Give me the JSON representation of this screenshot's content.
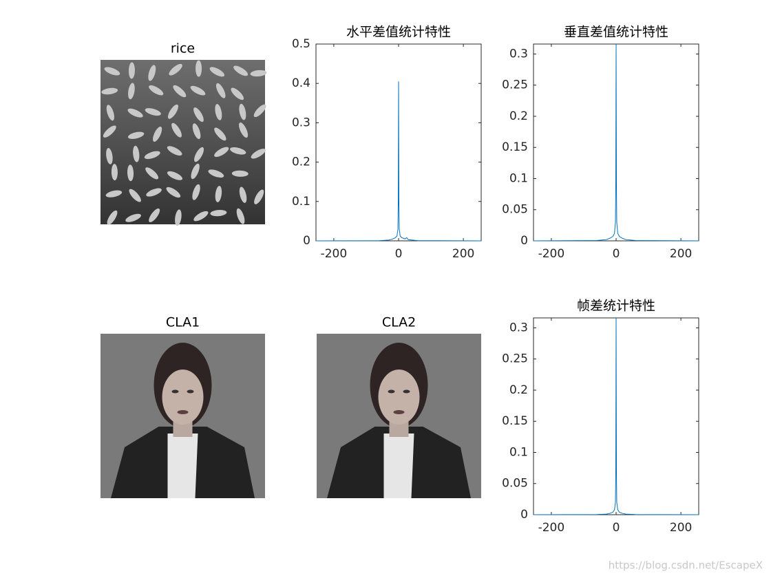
{
  "chart_data": [
    {
      "type": "image",
      "title": "rice"
    },
    {
      "type": "line",
      "title": "水平差值统计特性",
      "color": "#0072bd",
      "x": [
        -255,
        -60,
        -30,
        -20,
        -10,
        -5,
        -2,
        -1,
        0,
        1,
        2,
        5,
        10,
        20,
        25,
        30,
        60,
        255
      ],
      "values": [
        0,
        0.0005,
        0.002,
        0.004,
        0.008,
        0.012,
        0.03,
        0.1,
        0.405,
        0.1,
        0.03,
        0.012,
        0.008,
        0.005,
        0.008,
        0.003,
        0.0005,
        0
      ],
      "xlim": [
        -255,
        255
      ],
      "xticks": [
        -200,
        0,
        200
      ],
      "ylim": [
        0,
        0.5
      ],
      "yticks": [
        0,
        0.1,
        0.2,
        0.3,
        0.4,
        0.5
      ],
      "grid": false
    },
    {
      "type": "line",
      "title": "垂直差值统计特性",
      "color": "#0072bd",
      "x": [
        -255,
        -60,
        -30,
        -20,
        -10,
        -5,
        -2,
        -1,
        0,
        1,
        2,
        5,
        10,
        20,
        30,
        60,
        255
      ],
      "values": [
        0,
        0.0005,
        0.002,
        0.004,
        0.007,
        0.012,
        0.03,
        0.09,
        0.316,
        0.09,
        0.03,
        0.012,
        0.007,
        0.004,
        0.002,
        0.0005,
        0
      ],
      "xlim": [
        -255,
        255
      ],
      "xticks": [
        -200,
        0,
        200
      ],
      "ylim": [
        0,
        0.316
      ],
      "yticks": [
        0,
        0.05,
        0.1,
        0.15,
        0.2,
        0.25,
        0.3
      ],
      "grid": false
    },
    {
      "type": "image",
      "title": "CLA1"
    },
    {
      "type": "image",
      "title": "CLA2"
    },
    {
      "type": "line",
      "title": "帧差统计特性",
      "color": "#0072bd",
      "x": [
        -255,
        -60,
        -30,
        -20,
        -10,
        -5,
        -2,
        -1,
        0,
        1,
        2,
        5,
        10,
        20,
        30,
        60,
        255
      ],
      "values": [
        0,
        0.0003,
        0.001,
        0.002,
        0.004,
        0.008,
        0.02,
        0.07,
        0.316,
        0.07,
        0.02,
        0.008,
        0.004,
        0.002,
        0.001,
        0.0003,
        0
      ],
      "xlim": [
        -255,
        255
      ],
      "xticks": [
        -200,
        0,
        200
      ],
      "ylim": [
        0,
        0.316
      ],
      "yticks": [
        0,
        0.05,
        0.1,
        0.15,
        0.2,
        0.25,
        0.3
      ],
      "grid": false
    }
  ],
  "watermark": "https://blog.csdn.net/EscapeX"
}
